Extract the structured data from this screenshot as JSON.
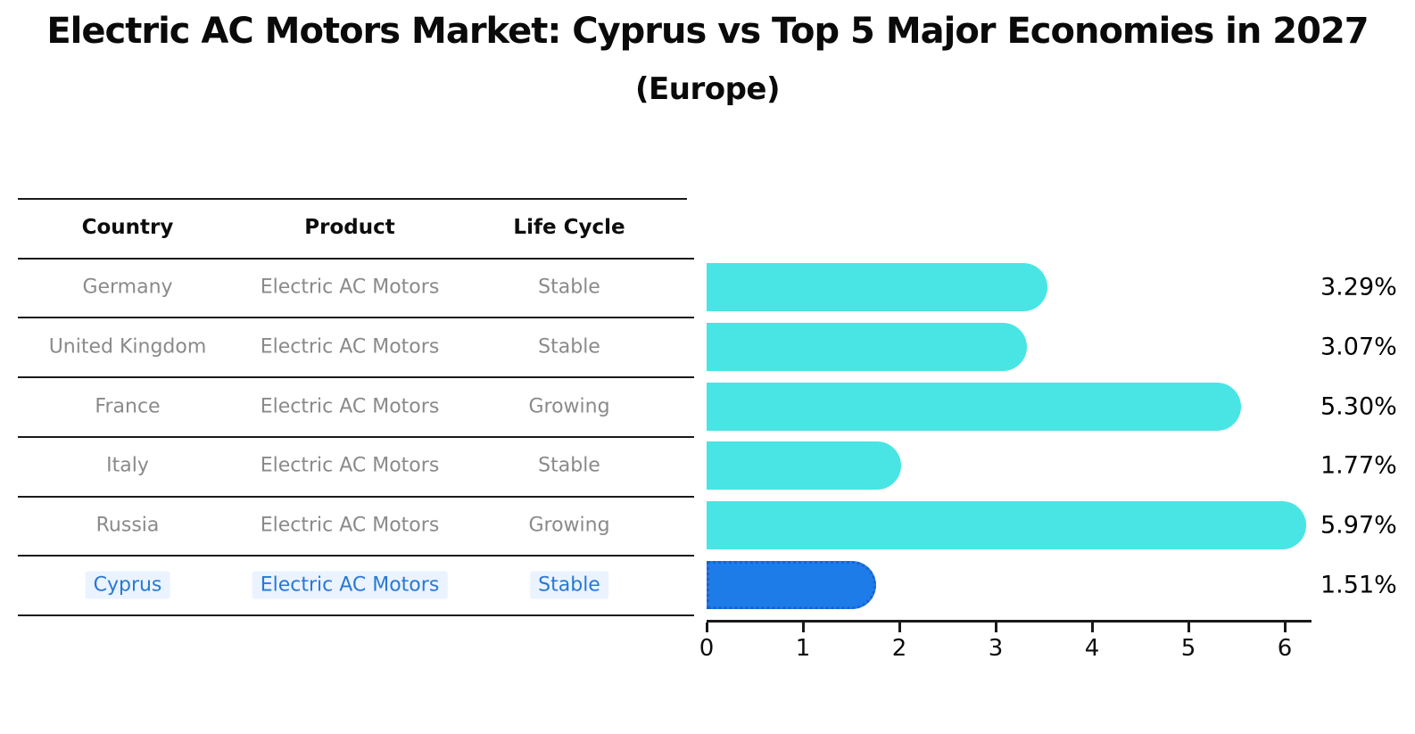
{
  "title": "Electric AC Motors Market: Cyprus vs Top 5 Major Economies in 2027",
  "subtitle": "(Europe)",
  "table": {
    "columns": [
      "Country",
      "Product",
      "Life Cycle"
    ],
    "rows": [
      {
        "country": "Germany",
        "product": "Electric AC Motors",
        "life_cycle": "Stable",
        "highlight": false
      },
      {
        "country": "United Kingdom",
        "product": "Electric AC Motors",
        "life_cycle": "Stable",
        "highlight": false
      },
      {
        "country": "France",
        "product": "Electric AC Motors",
        "life_cycle": "Growing",
        "highlight": false
      },
      {
        "country": "Italy",
        "product": "Electric AC Motors",
        "life_cycle": "Stable",
        "highlight": false
      },
      {
        "country": "Russia",
        "product": "Electric AC Motors",
        "life_cycle": "Growing",
        "highlight": false
      },
      {
        "country": "Cyprus",
        "product": "Electric AC Motors",
        "life_cycle": "Stable",
        "highlight": true
      }
    ]
  },
  "chart_data": {
    "type": "bar",
    "orientation": "horizontal",
    "categories": [
      "Germany",
      "United Kingdom",
      "France",
      "Italy",
      "Russia",
      "Cyprus"
    ],
    "values": [
      3.29,
      3.07,
      5.3,
      1.77,
      5.97,
      1.51
    ],
    "value_labels": [
      "3.29%",
      "3.07%",
      "5.30%",
      "1.77%",
      "5.97%",
      "1.51%"
    ],
    "title": "Electric AC Motors Market: Cyprus vs Top 5 Major Economies in 2027",
    "subtitle": "(Europe)",
    "xlabel": "",
    "ylabel": "",
    "x_ticks": [
      0,
      1,
      2,
      3,
      4,
      5,
      6
    ],
    "xlim": [
      0,
      6.28
    ],
    "grid": false,
    "legend": false,
    "highlight_index": 5
  },
  "colors": {
    "bar": "#48E5E4",
    "highlight_bar": "#1E7CE8",
    "highlight_bar_border": "#1a63d0",
    "highlight_text": "#2878d6",
    "row_text": "#8a8a8a",
    "header_text": "#0d0d0d",
    "line": "#1a1a1a",
    "value_text": "#000000"
  }
}
